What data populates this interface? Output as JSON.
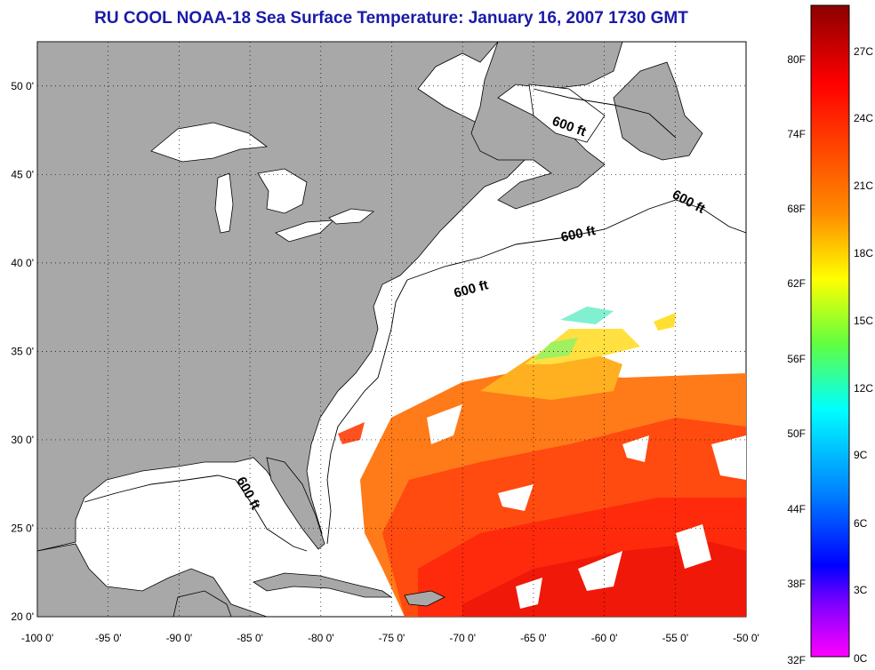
{
  "title": "RU COOL  NOAA-18  Sea Surface Temperature:  January 16, 2007 1730 GMT",
  "map": {
    "lon_ticks": [
      "-100 0'",
      "-95 0'",
      "-90 0'",
      "-85 0'",
      "-80 0'",
      "-75 0'",
      "-70 0'",
      "-65 0'",
      "-60 0'",
      "-55 0'",
      "-50 0'"
    ],
    "lat_ticks": [
      "20 0'",
      "25 0'",
      "30 0'",
      "35 0'",
      "40 0'",
      "45 0'",
      "50 0'"
    ],
    "lon_range": [
      -100,
      -50
    ],
    "lat_range": [
      20,
      52.5
    ],
    "isobath_label": "600 ft",
    "colors": {
      "land": "#a8a8a8",
      "ocean_nodata": "#ffffff",
      "grid": "#000000"
    }
  },
  "colorbar": {
    "fahrenheit_labels": [
      "80F",
      "74F",
      "68F",
      "62F",
      "56F",
      "50F",
      "44F",
      "38F",
      "32F"
    ],
    "celsius_labels": [
      "27C",
      "24C",
      "21C",
      "18C",
      "15C",
      "12C",
      "9C",
      "6C",
      "3C",
      "0C"
    ],
    "gradient_stops": [
      "#8b0000",
      "#ff0000",
      "#ff8c00",
      "#ffff00",
      "#40ff40",
      "#00ffff",
      "#0080ff",
      "#0000ff",
      "#8000ff",
      "#ff00ff"
    ]
  }
}
